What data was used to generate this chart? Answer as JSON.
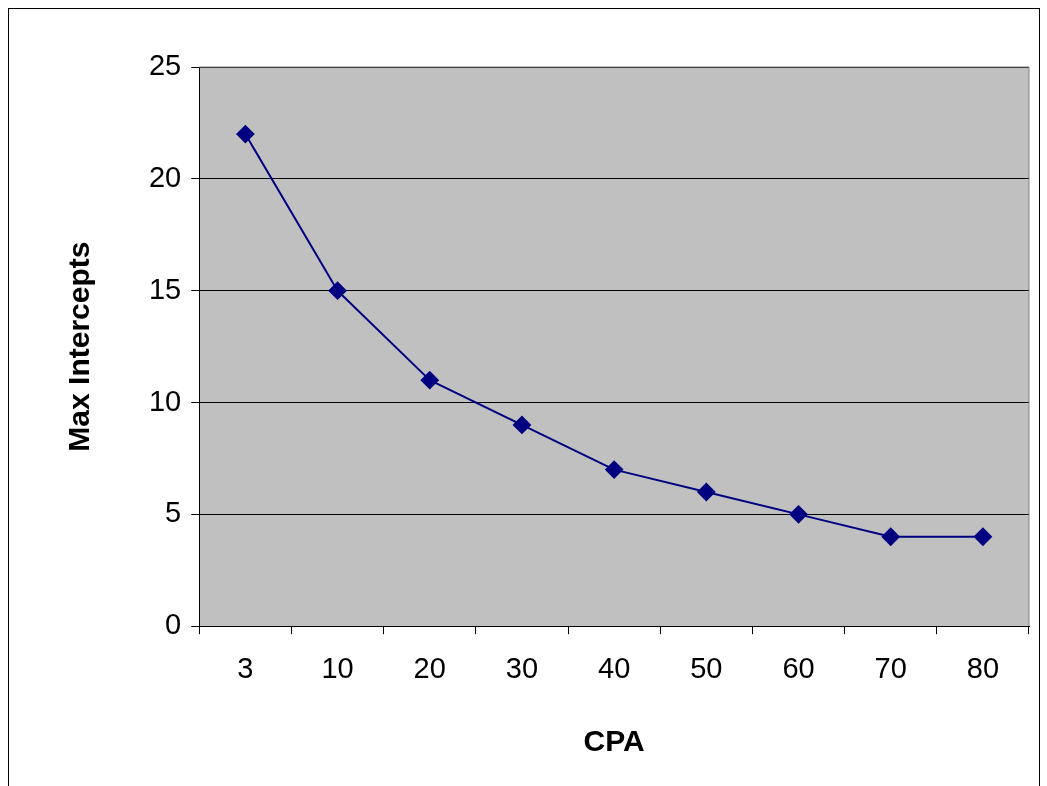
{
  "chart_data": {
    "type": "line",
    "xlabel": "CPA",
    "ylabel": "Max Intercepts",
    "categories": [
      "3",
      "10",
      "20",
      "30",
      "40",
      "50",
      "60",
      "70",
      "80"
    ],
    "values": [
      22,
      15,
      11,
      9,
      7,
      6,
      5,
      4,
      4
    ],
    "color": "#000080",
    "ylim": [
      0,
      25
    ],
    "yticks": [
      0,
      5,
      10,
      15,
      20,
      25
    ],
    "grid": "y",
    "marker": "diamond",
    "line_style": "solid"
  }
}
